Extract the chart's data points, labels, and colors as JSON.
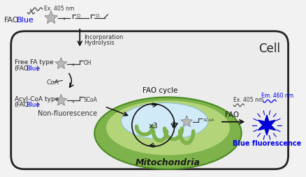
{
  "fig_width": 4.39,
  "fig_height": 2.55,
  "dpi": 100,
  "bg_color": "#f2f2f2",
  "cell_bg": "#ececec",
  "cell_border": "#222222",
  "text_black": "#111111",
  "text_blue": "#0000ee",
  "text_dark": "#222222",
  "star_color": "#b8b8b8",
  "star_edge": "#888888",
  "mito_green_outer": "#7db34a",
  "mito_green_inner": "#b4d47a",
  "mito_blue_inner": "#d0eaf8",
  "label_fao": "FAO",
  "label_blue": "Blue",
  "label_free_fa": "Free FA type",
  "label_free_fa_sub": "(FAO",
  "label_free_fa_blue": "Blue",
  "label_free_fa_close": ")",
  "label_acyl": "Acyl-CoA type",
  "label_acyl_sub": "(FAO",
  "label_acyl_blue": "Blue",
  "label_acyl_close": ")",
  "label_non_fluor": "Non-fluorescence",
  "label_incorp": "Incorporation",
  "label_hydro": "Hydrolysis",
  "label_coa": "CoA",
  "label_fao_cycle": "FAO cycle",
  "label_x3": "x3",
  "label_mito": "Mitochondria",
  "label_cell": "Cell",
  "label_fao_arrow": "FAO",
  "label_blue_fluor": "Blue fluorescence",
  "label_ex_top": "Ex. 405 nm",
  "label_ex_right": "Ex. 405 nm",
  "label_em_right": "Em. 460 nm"
}
